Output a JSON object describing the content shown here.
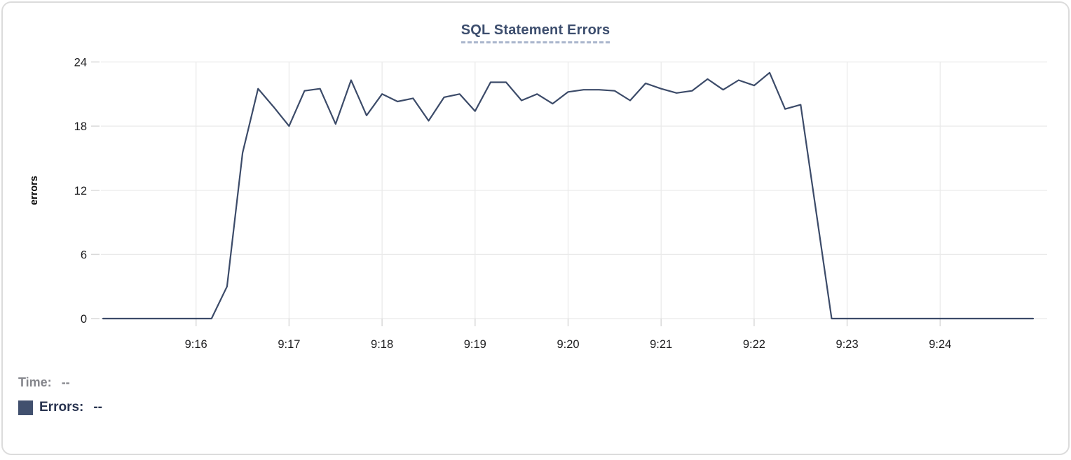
{
  "card": {
    "title": "SQL Statement Errors"
  },
  "footer": {
    "time_label": "Time:",
    "time_value": "--",
    "errors_label": "Errors:",
    "errors_value": "--",
    "swatch_color": "#41506e"
  },
  "chart_data": {
    "type": "line",
    "title": "SQL Statement Errors",
    "xlabel": "",
    "ylabel": "errors",
    "ylim": [
      0,
      24
    ],
    "yticks": [
      0,
      6,
      12,
      18,
      24
    ],
    "xticks": [
      "9:16",
      "9:17",
      "9:18",
      "9:19",
      "9:20",
      "9:21",
      "9:22",
      "9:23",
      "9:24"
    ],
    "x_range": [
      "9:15:00",
      "9:25:00"
    ],
    "sample_interval_seconds": 10,
    "grid": true,
    "legend_position": "bottom-left",
    "line_color": "#3c4b69",
    "grid_color": "#eaeaea",
    "tick_color": "#d9d9d9",
    "tick_label_color": "#1b1b1d",
    "series": [
      {
        "name": "Errors",
        "x": [
          "9:15:00",
          "9:15:10",
          "9:15:20",
          "9:15:30",
          "9:15:40",
          "9:15:50",
          "9:16:00",
          "9:16:10",
          "9:16:20",
          "9:16:30",
          "9:16:40",
          "9:16:50",
          "9:17:00",
          "9:17:10",
          "9:17:20",
          "9:17:30",
          "9:17:40",
          "9:17:50",
          "9:18:00",
          "9:18:10",
          "9:18:20",
          "9:18:30",
          "9:18:40",
          "9:18:50",
          "9:19:00",
          "9:19:10",
          "9:19:20",
          "9:19:30",
          "9:19:40",
          "9:19:50",
          "9:20:00",
          "9:20:10",
          "9:20:20",
          "9:20:30",
          "9:20:40",
          "9:20:50",
          "9:21:00",
          "9:21:10",
          "9:21:20",
          "9:21:30",
          "9:21:40",
          "9:21:50",
          "9:22:00",
          "9:22:10",
          "9:22:20",
          "9:22:30",
          "9:22:40",
          "9:22:50",
          "9:23:00",
          "9:23:10",
          "9:23:20",
          "9:23:30",
          "9:23:40",
          "9:23:50",
          "9:24:00",
          "9:24:10",
          "9:24:20",
          "9:24:30",
          "9:24:40",
          "9:24:50",
          "9:25:00"
        ],
        "values": [
          0,
          0,
          0,
          0,
          0,
          0,
          0,
          0,
          3,
          15.5,
          21.5,
          19.8,
          18,
          21.3,
          21.5,
          18.2,
          22.3,
          19,
          21,
          20.3,
          20.6,
          18.5,
          20.7,
          21,
          19.4,
          22.1,
          22.1,
          20.4,
          21,
          20.1,
          21.2,
          21.4,
          21.4,
          21.3,
          20.4,
          22,
          21.5,
          21.1,
          21.3,
          22.4,
          21.4,
          22.3,
          21.8,
          23,
          19.6,
          20,
          10,
          0,
          0,
          0,
          0,
          0,
          0,
          0,
          0,
          0,
          0,
          0,
          0,
          0,
          0
        ]
      }
    ]
  }
}
